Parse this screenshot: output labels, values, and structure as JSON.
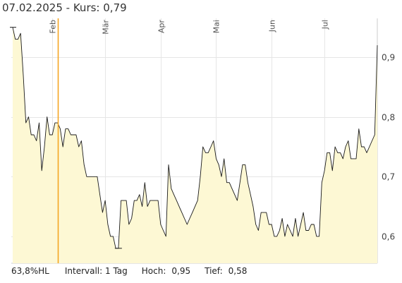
{
  "title": {
    "date": "07.02.2025",
    "separator": " - ",
    "kurs_label": "Kurs:",
    "kurs_value": "0,79"
  },
  "footer": {
    "hl": "63,8%HL",
    "interval_label": "Intervall:",
    "interval_value": "1 Tag",
    "high_label": "Hoch:",
    "high_value": "0,95",
    "low_label": "Tief:",
    "low_value": "0,58"
  },
  "colors": {
    "line": "#1a1a1a",
    "area": "#fdf8d4",
    "marker": "#f5a623",
    "grid": "#e6e6e6"
  },
  "chart_data": {
    "type": "area",
    "title": "",
    "xlabel": "",
    "ylabel": "",
    "ylim": [
      0.555,
      0.965
    ],
    "y_ticks": [
      {
        "label": "0,9",
        "value": 0.9
      },
      {
        "label": "0,8",
        "value": 0.8
      },
      {
        "label": "0,7",
        "value": 0.7
      },
      {
        "label": "0,6",
        "value": 0.6
      }
    ],
    "x_ticks": [
      {
        "label": "Feb",
        "index": 15
      },
      {
        "label": "Mär",
        "index": 35
      },
      {
        "label": "Apr",
        "index": 56
      },
      {
        "label": "Mai",
        "index": 77
      },
      {
        "label": "Jun",
        "index": 98
      },
      {
        "label": "Jul",
        "index": 118
      }
    ],
    "marker_index": 17,
    "marker_label": "07.02.2025",
    "high_index": 0,
    "low_index": 40,
    "values": [
      0.95,
      0.93,
      0.93,
      0.94,
      0.87,
      0.79,
      0.8,
      0.77,
      0.77,
      0.76,
      0.79,
      0.71,
      0.75,
      0.8,
      0.77,
      0.77,
      0.79,
      0.79,
      0.78,
      0.75,
      0.78,
      0.78,
      0.77,
      0.77,
      0.77,
      0.75,
      0.76,
      0.72,
      0.7,
      0.7,
      0.7,
      0.7,
      0.7,
      0.67,
      0.64,
      0.66,
      0.62,
      0.6,
      0.6,
      0.58,
      0.58,
      0.66,
      0.66,
      0.66,
      0.62,
      0.63,
      0.66,
      0.66,
      0.67,
      0.65,
      0.69,
      0.65,
      0.66,
      0.66,
      0.66,
      0.66,
      0.62,
      0.61,
      0.6,
      0.72,
      0.68,
      0.67,
      0.66,
      0.65,
      0.64,
      0.63,
      0.62,
      0.63,
      0.64,
      0.65,
      0.66,
      0.7,
      0.75,
      0.74,
      0.74,
      0.75,
      0.76,
      0.73,
      0.72,
      0.7,
      0.73,
      0.69,
      0.69,
      0.68,
      0.67,
      0.66,
      0.69,
      0.72,
      0.72,
      0.69,
      0.67,
      0.65,
      0.62,
      0.61,
      0.64,
      0.64,
      0.64,
      0.62,
      0.62,
      0.6,
      0.6,
      0.61,
      0.63,
      0.6,
      0.62,
      0.61,
      0.6,
      0.63,
      0.6,
      0.62,
      0.64,
      0.61,
      0.61,
      0.62,
      0.62,
      0.6,
      0.6,
      0.69,
      0.71,
      0.74,
      0.74,
      0.71,
      0.75,
      0.74,
      0.74,
      0.73,
      0.75,
      0.76,
      0.73,
      0.73,
      0.73,
      0.78,
      0.75,
      0.75,
      0.74,
      0.75,
      0.76,
      0.77,
      0.92
    ]
  }
}
